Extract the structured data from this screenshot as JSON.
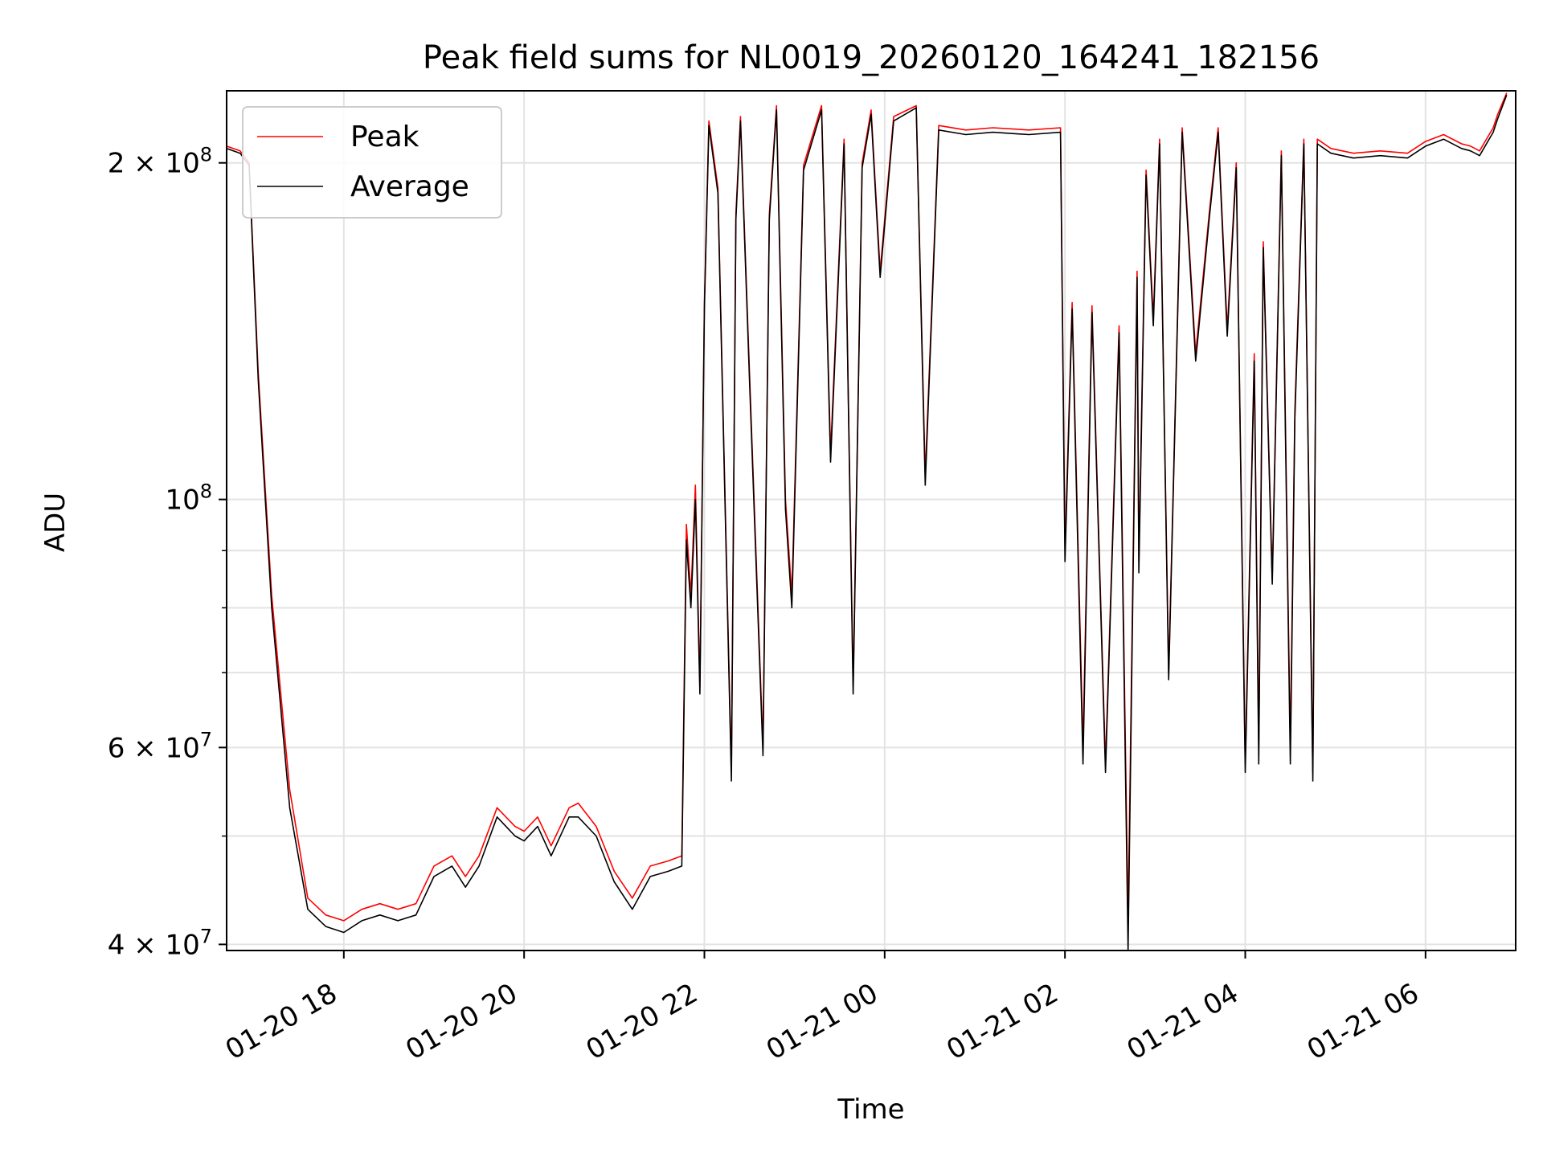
{
  "chart_data": {
    "type": "line",
    "title": "Peak field sums for NL0019_20260120_164241_182156",
    "xlabel": "Time",
    "ylabel": "ADU",
    "yscale": "log",
    "ylim": [
      39500000,
      232000000
    ],
    "xlim_hours": [
      16.7,
      31.0
    ],
    "grid": true,
    "legend_position": "upper-left",
    "x_ticks": [
      {
        "hour": 18,
        "label": "01-20 18"
      },
      {
        "hour": 20,
        "label": "01-20 20"
      },
      {
        "hour": 22,
        "label": "01-20 22"
      },
      {
        "hour": 24,
        "label": "01-21 00"
      },
      {
        "hour": 26,
        "label": "01-21 02"
      },
      {
        "hour": 28,
        "label": "01-21 04"
      },
      {
        "hour": 30,
        "label": "01-21 06"
      }
    ],
    "y_major_ticks": [
      {
        "value": 40000000,
        "mantissa": "4",
        "exponent": "7"
      },
      {
        "value": 60000000,
        "mantissa": "6",
        "exponent": "7"
      },
      {
        "value": 100000000,
        "mantissa": "",
        "exponent": "8"
      },
      {
        "value": 200000000,
        "mantissa": "2",
        "exponent": "8"
      }
    ],
    "y_minor_ticks": [
      50000000,
      70000000,
      80000000,
      90000000
    ],
    "series": [
      {
        "name": "Peak",
        "color": "#ff0000",
        "x_hours": [
          16.7,
          16.85,
          16.95,
          17.05,
          17.2,
          17.4,
          17.6,
          17.8,
          18.0,
          18.2,
          18.4,
          18.6,
          18.8,
          19.0,
          19.2,
          19.35,
          19.5,
          19.7,
          19.9,
          20.0,
          20.15,
          20.3,
          20.5,
          20.6,
          20.8,
          21.0,
          21.2,
          21.4,
          21.6,
          21.75,
          21.8,
          21.85,
          21.9,
          21.95,
          22.0,
          22.05,
          22.15,
          22.3,
          22.35,
          22.4,
          22.5,
          22.65,
          22.72,
          22.8,
          22.9,
          22.97,
          23.1,
          23.3,
          23.4,
          23.55,
          23.65,
          23.75,
          23.85,
          23.95,
          24.1,
          24.35,
          24.45,
          24.6,
          24.9,
          25.2,
          25.6,
          25.95,
          26.0,
          26.08,
          26.2,
          26.3,
          26.45,
          26.6,
          26.7,
          26.8,
          26.82,
          26.9,
          26.98,
          27.05,
          27.15,
          27.3,
          27.45,
          27.6,
          27.7,
          27.8,
          27.9,
          28.0,
          28.1,
          28.15,
          28.2,
          28.3,
          28.4,
          28.5,
          28.55,
          28.65,
          28.75,
          28.8,
          28.95,
          29.2,
          29.5,
          29.8,
          30.0,
          30.2,
          30.4,
          30.5,
          30.6,
          30.75,
          30.8,
          30.9
        ],
        "values": [
          207000000,
          205000000,
          200000000,
          130000000,
          82000000,
          55000000,
          44000000,
          42500000,
          42000000,
          43000000,
          43500000,
          43000000,
          43500000,
          47000000,
          48000000,
          46000000,
          48000000,
          53000000,
          51000000,
          50500000,
          52000000,
          49000000,
          53000000,
          53500000,
          51000000,
          46500000,
          44000000,
          47000000,
          47500000,
          48000000,
          95000000,
          82000000,
          103000000,
          68000000,
          150000000,
          218000000,
          190000000,
          57000000,
          180000000,
          220000000,
          130000000,
          60000000,
          180000000,
          225000000,
          100000000,
          82000000,
          199000000,
          225000000,
          110000000,
          210000000,
          68000000,
          200000000,
          223000000,
          160000000,
          220000000,
          225000000,
          105000000,
          216000000,
          214000000,
          215000000,
          214000000,
          215000000,
          90000000,
          150000000,
          60000000,
          149000000,
          58000000,
          143000000,
          42000000,
          160000000,
          88000000,
          197000000,
          145000000,
          210000000,
          70000000,
          215000000,
          135000000,
          180000000,
          215000000,
          142000000,
          200000000,
          58000000,
          135000000,
          60000000,
          170000000,
          85000000,
          205000000,
          60000000,
          120000000,
          210000000,
          57000000,
          210000000,
          206000000,
          204000000,
          205000000,
          204000000,
          209000000,
          212000000,
          208000000,
          207000000,
          205000000,
          215000000,
          221000000,
          231000000
        ]
      },
      {
        "name": "Average",
        "color": "#000000",
        "x_hours": [
          16.7,
          16.85,
          16.95,
          17.05,
          17.2,
          17.4,
          17.6,
          17.8,
          18.0,
          18.2,
          18.4,
          18.6,
          18.8,
          19.0,
          19.2,
          19.35,
          19.5,
          19.7,
          19.9,
          20.0,
          20.15,
          20.3,
          20.5,
          20.6,
          20.8,
          21.0,
          21.2,
          21.4,
          21.6,
          21.75,
          21.8,
          21.85,
          21.9,
          21.95,
          22.0,
          22.05,
          22.15,
          22.3,
          22.35,
          22.4,
          22.5,
          22.65,
          22.72,
          22.8,
          22.9,
          22.97,
          23.1,
          23.3,
          23.4,
          23.55,
          23.65,
          23.75,
          23.85,
          23.95,
          24.1,
          24.35,
          24.45,
          24.6,
          24.9,
          25.2,
          25.6,
          25.95,
          26.0,
          26.08,
          26.2,
          26.3,
          26.45,
          26.6,
          26.7,
          26.8,
          26.82,
          26.9,
          26.98,
          27.05,
          27.15,
          27.3,
          27.45,
          27.6,
          27.7,
          27.8,
          27.9,
          28.0,
          28.1,
          28.15,
          28.2,
          28.3,
          28.4,
          28.5,
          28.55,
          28.65,
          28.75,
          28.8,
          28.95,
          29.2,
          29.5,
          29.8,
          30.0,
          30.2,
          30.4,
          30.5,
          30.6,
          30.75,
          30.8,
          30.9
        ],
        "values": [
          206000000,
          204000000,
          199000000,
          128000000,
          80000000,
          53000000,
          43000000,
          41500000,
          41000000,
          42000000,
          42500000,
          42000000,
          42500000,
          46000000,
          47000000,
          45000000,
          47000000,
          52000000,
          50000000,
          49500000,
          51000000,
          48000000,
          52000000,
          52000000,
          50000000,
          45500000,
          43000000,
          46000000,
          46500000,
          47000000,
          92000000,
          80000000,
          100000000,
          67000000,
          148000000,
          216000000,
          188000000,
          56000000,
          178000000,
          218000000,
          128000000,
          59000000,
          178000000,
          223000000,
          98000000,
          80000000,
          197000000,
          223000000,
          108000000,
          208000000,
          67000000,
          198000000,
          221000000,
          158000000,
          218000000,
          224000000,
          103000000,
          214000000,
          212000000,
          213000000,
          212000000,
          213000000,
          88000000,
          148000000,
          58000000,
          147000000,
          57000000,
          141000000,
          39500000,
          158000000,
          86000000,
          195000000,
          143000000,
          208000000,
          69000000,
          213000000,
          133000000,
          178000000,
          213000000,
          140000000,
          198000000,
          57000000,
          133000000,
          58000000,
          168000000,
          84000000,
          203000000,
          58000000,
          118000000,
          208000000,
          56000000,
          208000000,
          204000000,
          202000000,
          203000000,
          202000000,
          207000000,
          210000000,
          206000000,
          205000000,
          203000000,
          213000000,
          219000000,
          230000000
        ]
      }
    ]
  }
}
